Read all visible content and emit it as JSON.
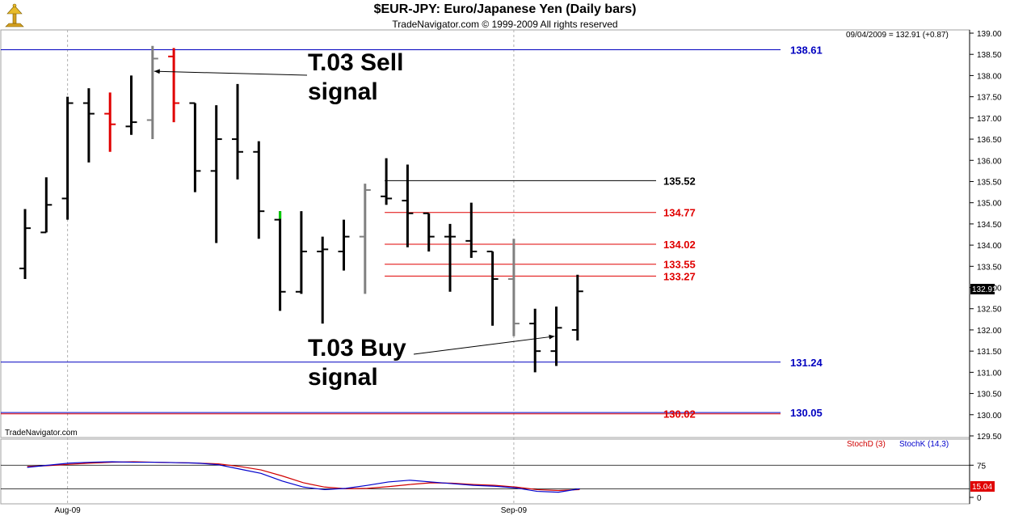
{
  "header": {
    "title": "$EUR-JPY:  Euro/Japanese Yen  (Daily bars)",
    "subtitle": "TradeNavigator.com © 1999-2009 All rights reserved",
    "readout": "09/04/2009 = 132.91 (+0.87)",
    "last_price": "132.91",
    "watermark": "TradeNavigator.com"
  },
  "colors": {
    "up_bar": "#000000",
    "sell_bar": "#e00000",
    "neutral_bar": "#808080",
    "accent_green": "#00cc00",
    "level_blue": "#0000c0",
    "level_red": "#e00000",
    "stoch_d": "#d00000",
    "stoch_k": "#0000cc"
  },
  "chart_data": [
    {
      "type": "ohlc",
      "title": "$EUR-JPY:  Euro/Japanese Yen  (Daily bars)",
      "ylim": [
        129.5,
        139.0
      ],
      "yticks": [
        "139.00",
        "138.50",
        "138.00",
        "137.50",
        "137.00",
        "136.50",
        "136.00",
        "135.50",
        "135.00",
        "134.50",
        "134.00",
        "133.50",
        "133.00",
        "132.50",
        "132.00",
        "131.50",
        "131.00",
        "130.50",
        "130.00",
        "129.50"
      ],
      "xticks": [
        {
          "label": "Aug-09",
          "index": 2
        },
        {
          "label": "Sep-09",
          "index": 23
        }
      ],
      "bars": [
        {
          "o": 133.45,
          "h": 134.85,
          "l": 133.2,
          "c": 134.4,
          "color": "black"
        },
        {
          "o": 134.3,
          "h": 135.6,
          "l": 134.3,
          "c": 134.95,
          "color": "black"
        },
        {
          "o": 135.1,
          "h": 137.5,
          "l": 134.6,
          "c": 137.35,
          "color": "black"
        },
        {
          "o": 137.35,
          "h": 137.7,
          "l": 135.95,
          "c": 137.1,
          "color": "black"
        },
        {
          "o": 137.1,
          "h": 137.6,
          "l": 136.2,
          "c": 136.85,
          "color": "red"
        },
        {
          "o": 136.8,
          "h": 138.0,
          "l": 136.6,
          "c": 136.9,
          "color": "black"
        },
        {
          "o": 136.95,
          "h": 138.7,
          "l": 136.5,
          "c": 138.4,
          "color": "gray"
        },
        {
          "o": 138.45,
          "h": 138.65,
          "l": 136.9,
          "c": 137.35,
          "color": "red"
        },
        {
          "o": 137.35,
          "h": 137.35,
          "l": 135.25,
          "c": 135.75,
          "color": "black"
        },
        {
          "o": 135.75,
          "h": 137.3,
          "l": 134.05,
          "c": 136.5,
          "color": "black"
        },
        {
          "o": 136.5,
          "h": 137.8,
          "l": 135.55,
          "c": 136.2,
          "color": "black"
        },
        {
          "o": 136.2,
          "h": 136.45,
          "l": 134.15,
          "c": 134.8,
          "color": "black"
        },
        {
          "o": 134.6,
          "h": 134.8,
          "l": 132.45,
          "c": 132.9,
          "color": "black"
        },
        {
          "o": 132.9,
          "h": 134.8,
          "l": 132.85,
          "c": 133.85,
          "color": "black"
        },
        {
          "o": 133.85,
          "h": 134.2,
          "l": 132.15,
          "c": 133.9,
          "color": "black"
        },
        {
          "o": 133.85,
          "h": 134.6,
          "l": 133.4,
          "c": 134.2,
          "color": "black"
        },
        {
          "o": 134.2,
          "h": 135.45,
          "l": 132.85,
          "c": 135.3,
          "color": "gray"
        },
        {
          "o": 135.15,
          "h": 136.05,
          "l": 134.95,
          "c": 135.1,
          "color": "black"
        },
        {
          "o": 135.05,
          "h": 135.9,
          "l": 133.95,
          "c": 134.75,
          "color": "black"
        },
        {
          "o": 134.75,
          "h": 134.75,
          "l": 133.85,
          "c": 134.2,
          "color": "black"
        },
        {
          "o": 134.2,
          "h": 134.5,
          "l": 132.9,
          "c": 134.2,
          "color": "black"
        },
        {
          "o": 134.1,
          "h": 135.0,
          "l": 133.7,
          "c": 133.85,
          "color": "black"
        },
        {
          "o": 133.85,
          "h": 133.85,
          "l": 132.1,
          "c": 133.2,
          "color": "black"
        },
        {
          "o": 133.2,
          "h": 134.15,
          "l": 131.85,
          "c": 132.15,
          "color": "gray"
        },
        {
          "o": 132.15,
          "h": 132.5,
          "l": 131.0,
          "c": 131.5,
          "color": "black"
        },
        {
          "o": 131.5,
          "h": 132.55,
          "l": 131.15,
          "c": 132.05,
          "color": "black"
        },
        {
          "o": 132.0,
          "h": 133.3,
          "l": 131.75,
          "c": 132.91,
          "color": "black"
        }
      ],
      "levels": [
        {
          "label": "138.61",
          "value": 138.61,
          "color": "blue",
          "span": "full"
        },
        {
          "label": "135.52",
          "value": 135.52,
          "color": "black",
          "span": "right"
        },
        {
          "label": "134.77",
          "value": 134.77,
          "color": "red",
          "span": "right"
        },
        {
          "label": "134.02",
          "value": 134.02,
          "color": "red",
          "span": "right"
        },
        {
          "label": "133.55",
          "value": 133.55,
          "color": "red",
          "span": "right"
        },
        {
          "label": "133.27",
          "value": 133.27,
          "color": "red",
          "span": "right"
        },
        {
          "label": "131.24",
          "value": 131.24,
          "color": "blue",
          "span": "full"
        },
        {
          "label": "130.05",
          "value": 130.05,
          "color": "blue",
          "span": "full"
        },
        {
          "label": "130.02",
          "value": 130.02,
          "color": "red",
          "span": "full"
        }
      ],
      "annotations": [
        {
          "line1": "T.03 Sell",
          "line2": "signal",
          "target_bar": 6,
          "target_value": 138.1
        },
        {
          "line1": "T.03 Buy",
          "line2": "signal",
          "target_bar": 25,
          "target_value": 131.85
        }
      ]
    },
    {
      "type": "line",
      "title": "",
      "ylim": [
        0,
        100
      ],
      "yticks": [
        "75",
        "0"
      ],
      "reference_lines": [
        75,
        20
      ],
      "last_value": "15.04",
      "series": [
        {
          "name": "StochD (3)",
          "color": "red",
          "values": [
            72,
            74,
            77,
            80,
            82,
            83,
            82,
            81,
            80,
            78,
            72,
            64,
            50,
            34,
            24,
            20,
            21,
            25,
            30,
            34,
            33,
            30,
            28,
            24,
            18,
            16,
            18
          ]
        },
        {
          "name": "StochK (14,3)",
          "color": "blue",
          "values": [
            70,
            75,
            80,
            82,
            83,
            82,
            82,
            81,
            80,
            76,
            66,
            56,
            38,
            24,
            18,
            21,
            28,
            36,
            40,
            36,
            32,
            28,
            26,
            22,
            14,
            12,
            20
          ]
        }
      ]
    }
  ]
}
